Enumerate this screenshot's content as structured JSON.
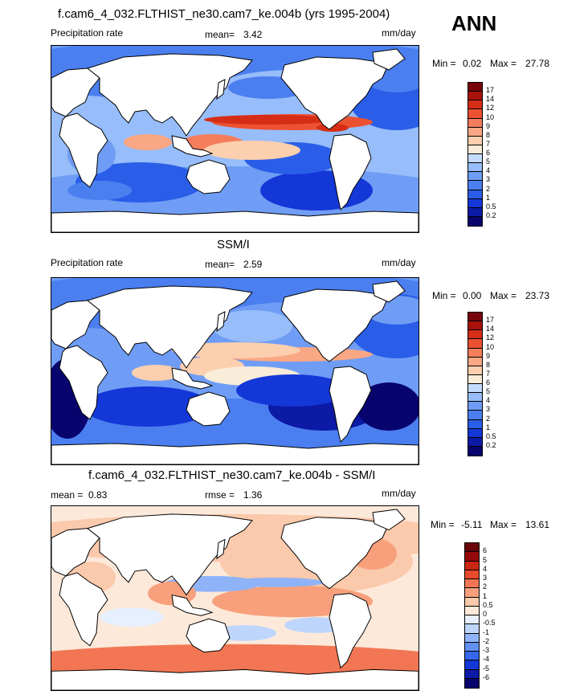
{
  "season": "ANN",
  "colors": {
    "abs": [
      "#08046e",
      "#0c1aa6",
      "#1437d8",
      "#2a5ee8",
      "#4b7ff0",
      "#6f9df5",
      "#97bdfa",
      "#c4dcfd",
      "#f9ecd9",
      "#fccfae",
      "#f9a784",
      "#f47d5c",
      "#ec5132",
      "#d62d16",
      "#a8120b",
      "#78040b"
    ],
    "diff": [
      "#08046e",
      "#0c1aa6",
      "#1437d8",
      "#3568ec",
      "#6290f3",
      "#8fb3f8",
      "#bfd6fc",
      "#e6f0fe",
      "#fde9da",
      "#fbc9ab",
      "#f8a07c",
      "#f27653",
      "#e84a2c",
      "#c92713",
      "#96090a",
      "#6a040b"
    ]
  },
  "chart_data": [
    {
      "type": "heatmap",
      "title": "f.cam6_4_032.FLTHIST_ne30.cam7_ke.004b (yrs 1995-2004)",
      "left_label": "Precipitation rate",
      "mean_label": "mean=",
      "mean": "3.42",
      "units": "mm/day",
      "min_label": "Min =",
      "min": "0.02",
      "max_label": "Max =",
      "max": "27.78",
      "levels": [
        "17",
        "14",
        "12",
        "10",
        "9",
        "8",
        "7",
        "6",
        "5",
        "4",
        "3",
        "2",
        "1",
        "0.5",
        "0.2"
      ]
    },
    {
      "type": "heatmap",
      "title": "SSM/I",
      "left_label": "Precipitation rate",
      "mean_label": "mean=",
      "mean": "2.59",
      "units": "mm/day",
      "min_label": "Min =",
      "min": "0.00",
      "max_label": "Max =",
      "max": "23.73",
      "levels": [
        "17",
        "14",
        "12",
        "10",
        "9",
        "8",
        "7",
        "6",
        "5",
        "4",
        "3",
        "2",
        "1",
        "0.5",
        "0.2"
      ]
    },
    {
      "type": "heatmap",
      "title": "f.cam6_4_032.FLTHIST_ne30.cam7_ke.004b - SSM/I",
      "left_label": "mean =",
      "mean": "0.83",
      "rmse_label": "rmse =",
      "rmse": "1.36",
      "units": "mm/day",
      "min_label": "Min =",
      "min": "-5.11",
      "max_label": "Max =",
      "max": "13.61",
      "levels": [
        "6",
        "5",
        "4",
        "3",
        "2",
        "1",
        "0.5",
        "0",
        "-0.5",
        "-1",
        "-2",
        "-3",
        "-4",
        "-5",
        "-6"
      ]
    }
  ]
}
